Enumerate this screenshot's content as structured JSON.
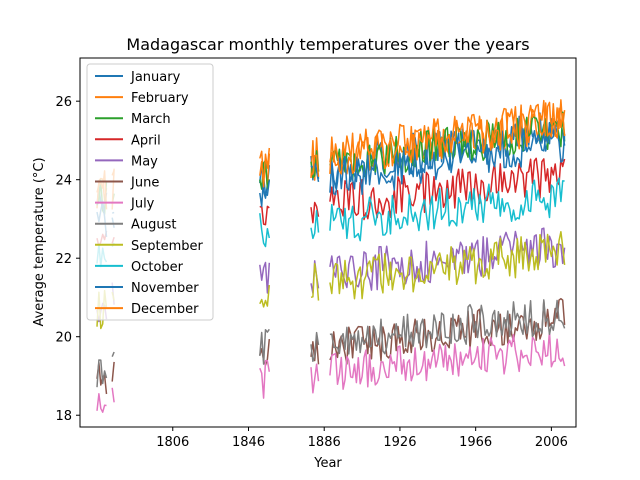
{
  "chart_data": {
    "type": "line",
    "title": "Madagascar monthly temperatures over the years",
    "xlabel": "Year",
    "ylabel": "Average temperature (°C)",
    "xlim": [
      1757,
      2019
    ],
    "ylim": [
      17.7,
      27.1
    ],
    "xticks": [
      1806,
      1846,
      1886,
      1926,
      1966,
      2006
    ],
    "yticks": [
      18,
      20,
      22,
      24,
      26
    ],
    "grid": false,
    "legend_position": "upper-left",
    "segments": [
      [
        1766,
        1771
      ],
      [
        1774,
        1775
      ],
      [
        1852,
        1857
      ],
      [
        1879,
        1883
      ],
      [
        1889,
        2013
      ]
    ],
    "series": [
      {
        "name": "January",
        "color": "#1f77b4",
        "base": 24.3,
        "trend": 0.95,
        "amp": 0.55
      },
      {
        "name": "February",
        "color": "#ff7f0e",
        "base": 24.6,
        "trend": 0.95,
        "amp": 0.55
      },
      {
        "name": "March",
        "color": "#2ca02c",
        "base": 24.4,
        "trend": 0.9,
        "amp": 0.5
      },
      {
        "name": "April",
        "color": "#d62728",
        "base": 23.4,
        "trend": 0.7,
        "amp": 0.55
      },
      {
        "name": "May",
        "color": "#9467bd",
        "base": 21.6,
        "trend": 0.7,
        "amp": 0.55
      },
      {
        "name": "June",
        "color": "#8c564b",
        "base": 19.7,
        "trend": 0.8,
        "amp": 0.5
      },
      {
        "name": "July",
        "color": "#e377c2",
        "base": 19.1,
        "trend": 0.6,
        "amp": 0.5
      },
      {
        "name": "August",
        "color": "#7f7f7f",
        "base": 19.9,
        "trend": 0.7,
        "amp": 0.5
      },
      {
        "name": "September",
        "color": "#bcbd22",
        "base": 21.4,
        "trend": 0.8,
        "amp": 0.55
      },
      {
        "name": "October",
        "color": "#17becf",
        "base": 22.9,
        "trend": 0.7,
        "amp": 0.55
      },
      {
        "name": "November",
        "color": "#1f77b4",
        "base": 24.0,
        "trend": 1.0,
        "amp": 0.55
      },
      {
        "name": "December",
        "color": "#ff7f0e",
        "base": 24.6,
        "trend": 0.9,
        "amp": 0.55
      }
    ]
  }
}
